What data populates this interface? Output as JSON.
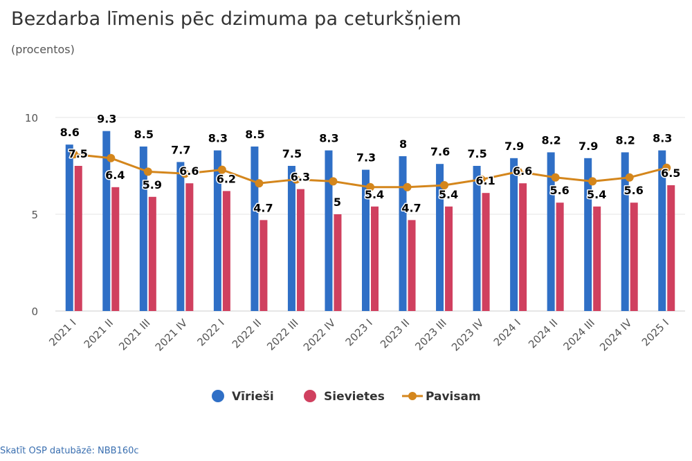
{
  "header": {
    "title": "Bezdarba līmenis pēc dzimuma pa ceturkšņiem",
    "subtitle": "(procentos)"
  },
  "footer": {
    "link_text": "Skatīt OSP datubāzē: NBB160c"
  },
  "colors": {
    "men": "#2f6fc6",
    "women": "#d0405f",
    "total": "#d4861c",
    "grid": "#e6e6e6",
    "axis": "#cccccc"
  },
  "chart_data": {
    "type": "bar",
    "title": "Bezdarba līmenis pēc dzimuma pa ceturkšņiem",
    "subtitle": "(procentos)",
    "categories": [
      "2021 I",
      "2021 II",
      "2021 III",
      "2021 IV",
      "2022 I",
      "2022 II",
      "2022 III",
      "2022 IV",
      "2023 I",
      "2023 II",
      "2023 III",
      "2023 IV",
      "2024 I",
      "2024 II",
      "2024 III",
      "2024 IV",
      "2025 I"
    ],
    "series": [
      {
        "name": "Vīrieši",
        "type": "bar",
        "values": [
          8.6,
          9.3,
          8.5,
          7.7,
          8.3,
          8.5,
          7.5,
          8.3,
          7.3,
          8,
          7.6,
          7.5,
          7.9,
          8.2,
          7.9,
          8.2,
          8.3
        ]
      },
      {
        "name": "Sievietes",
        "type": "bar",
        "values": [
          7.5,
          6.4,
          5.9,
          6.6,
          6.2,
          4.7,
          6.3,
          5,
          5.4,
          4.7,
          5.4,
          6.1,
          6.6,
          5.6,
          5.4,
          5.6,
          6.5
        ]
      },
      {
        "name": "Pavisam",
        "type": "line",
        "values": [
          8.1,
          7.9,
          7.2,
          7.1,
          7.3,
          6.6,
          6.8,
          6.7,
          6.4,
          6.4,
          6.5,
          6.8,
          7.2,
          6.9,
          6.7,
          6.9,
          7.4
        ]
      }
    ],
    "ylim": [
      0,
      10
    ],
    "yticks": [
      0,
      5,
      10
    ],
    "xlabel": "",
    "ylabel": "",
    "grid": true,
    "legend": "bottom-center"
  }
}
